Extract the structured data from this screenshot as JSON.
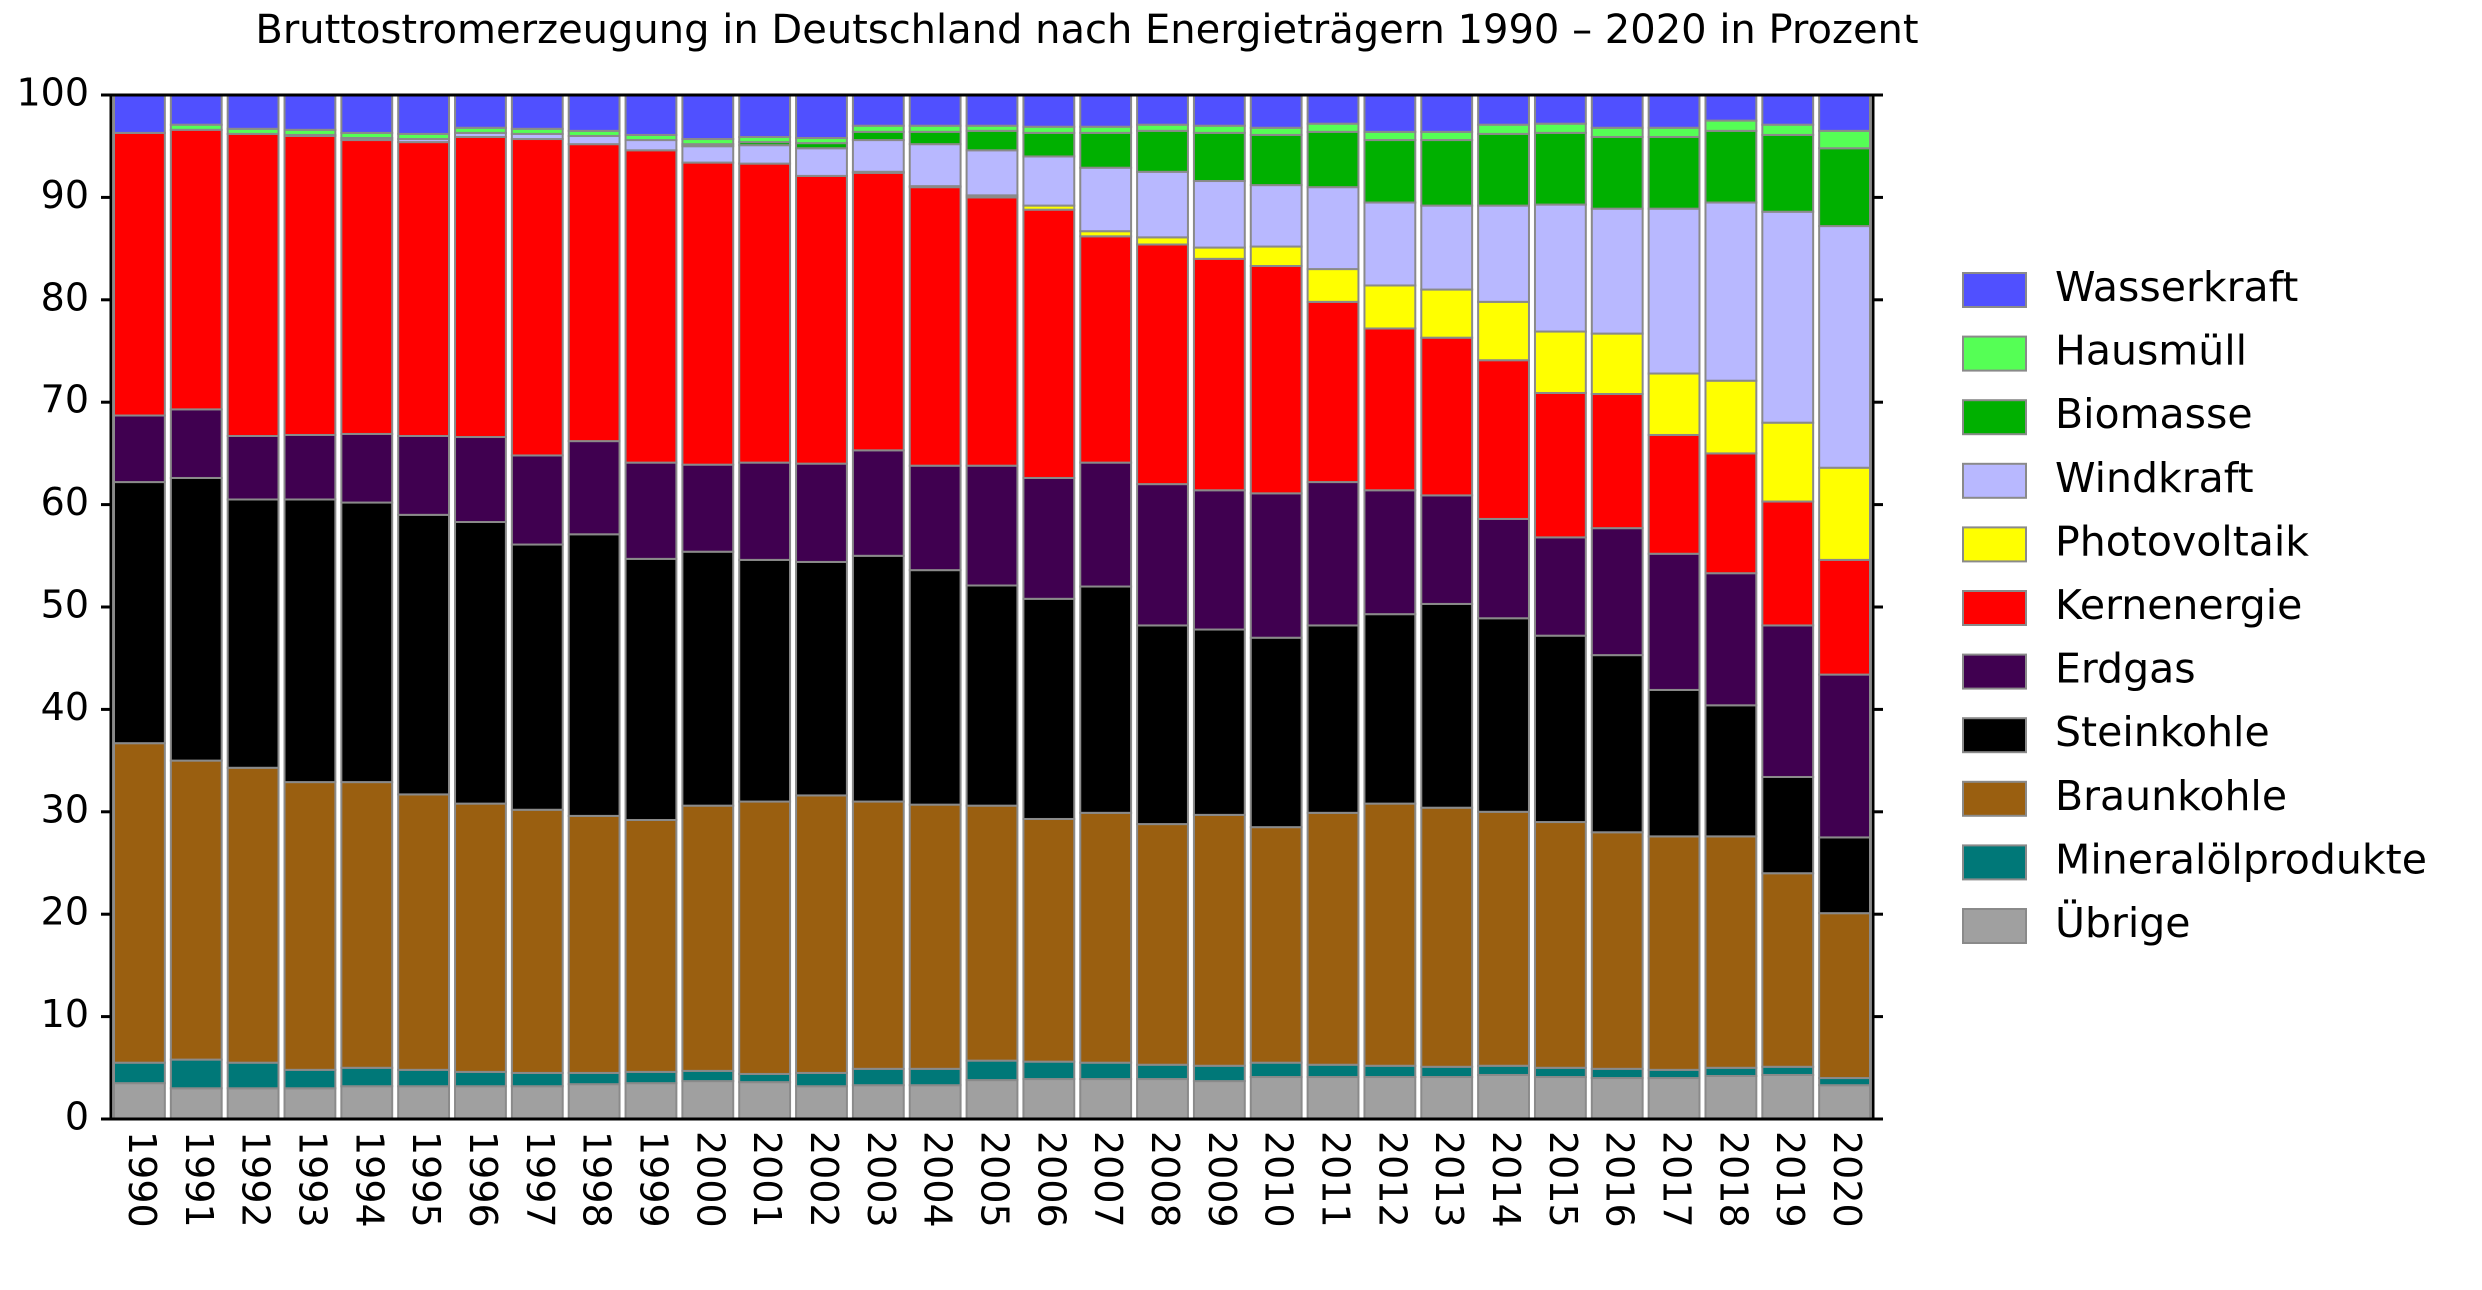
{
  "chart_data": {
    "type": "stacked_bar",
    "title": "Bruttostromerzeugung in Deutschland nach Energieträgern 1990 – 2020 in Prozent",
    "categories": [
      "1990",
      "1991",
      "1992",
      "1993",
      "1994",
      "1995",
      "1996",
      "1997",
      "1998",
      "1999",
      "2000",
      "2001",
      "2002",
      "2003",
      "2004",
      "2005",
      "2006",
      "2007",
      "2008",
      "2009",
      "2010",
      "2011",
      "2012",
      "2013",
      "2014",
      "2015",
      "2016",
      "2017",
      "2018",
      "2019",
      "2020"
    ],
    "ylim": [
      0,
      100
    ],
    "yticks": [
      0,
      10,
      20,
      30,
      40,
      50,
      60,
      70,
      80,
      90,
      100
    ],
    "grid": false,
    "legend": "right",
    "series": [
      {
        "name": "Übrige",
        "color": "#a0a0a0",
        "values": [
          3.5,
          3.0,
          3.0,
          3.0,
          3.2,
          3.2,
          3.2,
          3.2,
          3.4,
          3.5,
          3.7,
          3.6,
          3.2,
          3.3,
          3.3,
          3.8,
          3.9,
          3.9,
          3.9,
          3.7,
          4.1,
          4.1,
          4.1,
          4.1,
          4.3,
          4.1,
          4.0,
          4.0,
          4.2,
          4.3,
          3.3
        ]
      },
      {
        "name": "Mineralölprodukte",
        "color": "#007878",
        "values": [
          2.0,
          2.8,
          2.5,
          1.8,
          1.8,
          1.6,
          1.4,
          1.3,
          1.1,
          1.1,
          1.0,
          0.8,
          1.3,
          1.6,
          1.6,
          1.9,
          1.7,
          1.6,
          1.4,
          1.5,
          1.4,
          1.2,
          1.1,
          1.0,
          0.9,
          0.9,
          0.9,
          0.8,
          0.8,
          0.8,
          0.7
        ]
      },
      {
        "name": "Braunkohle",
        "color": "#9a5f10",
        "values": [
          31.2,
          29.2,
          28.8,
          28.1,
          27.9,
          26.9,
          26.2,
          25.7,
          25.1,
          24.6,
          25.9,
          26.6,
          27.1,
          26.1,
          25.8,
          24.9,
          23.7,
          24.4,
          23.5,
          24.5,
          23.0,
          24.6,
          25.6,
          25.3,
          24.8,
          24.0,
          23.1,
          22.8,
          22.6,
          18.9,
          16.1
        ]
      },
      {
        "name": "Steinkohle",
        "color": "#000000",
        "values": [
          25.5,
          27.6,
          26.2,
          27.6,
          27.3,
          27.3,
          27.5,
          25.9,
          27.5,
          25.5,
          24.8,
          23.6,
          22.8,
          24.0,
          22.9,
          21.5,
          21.5,
          22.1,
          19.4,
          18.1,
          18.5,
          18.3,
          18.5,
          19.9,
          18.9,
          18.2,
          17.3,
          14.3,
          12.8,
          9.4,
          7.4
        ]
      },
      {
        "name": "Erdgas",
        "color": "#400050",
        "values": [
          6.5,
          6.7,
          6.2,
          6.3,
          6.7,
          7.7,
          8.3,
          8.7,
          9.1,
          9.4,
          8.5,
          9.5,
          9.6,
          10.3,
          10.2,
          11.7,
          11.8,
          12.1,
          13.8,
          13.6,
          14.1,
          14.0,
          12.1,
          10.6,
          9.7,
          9.6,
          12.4,
          13.3,
          12.9,
          14.8,
          15.9
        ]
      },
      {
        "name": "Kernenergie",
        "color": "#ff0000",
        "values": [
          27.6,
          27.3,
          29.5,
          29.2,
          28.7,
          28.7,
          29.3,
          30.9,
          29.0,
          30.5,
          29.5,
          29.2,
          28.1,
          27.1,
          27.2,
          26.2,
          26.2,
          22.1,
          23.4,
          22.6,
          22.2,
          17.6,
          15.8,
          15.4,
          15.5,
          14.1,
          13.1,
          11.6,
          11.7,
          12.1,
          11.2
        ]
      },
      {
        "name": "Photovoltaik",
        "color": "#ffff00",
        "values": [
          0,
          0,
          0,
          0,
          0,
          0,
          0,
          0,
          0,
          0,
          0,
          0,
          0,
          0.1,
          0.1,
          0.2,
          0.4,
          0.5,
          0.7,
          1.1,
          1.9,
          3.2,
          4.2,
          4.7,
          5.7,
          6.0,
          5.9,
          6.0,
          7.1,
          7.7,
          9.0
        ]
      },
      {
        "name": "Windkraft",
        "color": "#b8b8ff",
        "values": [
          0,
          0,
          0,
          0.1,
          0.2,
          0.3,
          0.4,
          0.5,
          0.8,
          1.0,
          1.6,
          1.8,
          2.7,
          3.1,
          4.1,
          4.4,
          4.8,
          6.2,
          6.4,
          6.5,
          6.0,
          8.0,
          8.1,
          8.2,
          9.4,
          12.4,
          12.2,
          16.1,
          17.4,
          20.6,
          23.6
        ]
      },
      {
        "name": "Biomasse",
        "color": "#00b000",
        "values": [
          0,
          0,
          0,
          0,
          0,
          0,
          0,
          0,
          0,
          0,
          0.2,
          0.3,
          0.5,
          0.8,
          1.2,
          1.9,
          2.3,
          3.4,
          4.0,
          4.7,
          4.9,
          5.4,
          6.1,
          6.4,
          7.0,
          7.0,
          7.0,
          7.0,
          7.0,
          7.5,
          7.6
        ]
      },
      {
        "name": "Hausmüll",
        "color": "#55ff55",
        "values": [
          0,
          0.5,
          0.5,
          0.5,
          0.5,
          0.5,
          0.5,
          0.5,
          0.5,
          0.5,
          0.5,
          0.5,
          0.5,
          0.6,
          0.6,
          0.5,
          0.6,
          0.6,
          0.6,
          0.7,
          0.7,
          0.8,
          0.8,
          0.8,
          0.9,
          0.9,
          0.9,
          0.9,
          1.0,
          1.0,
          1.7
        ]
      },
      {
        "name": "Wasserkraft",
        "color": "#5050ff",
        "values": [
          3.7,
          2.9,
          3.3,
          3.4,
          3.7,
          3.8,
          3.2,
          3.3,
          3.5,
          3.9,
          4.3,
          4.1,
          4.2,
          3.0,
          3.0,
          3.0,
          3.1,
          3.1,
          2.9,
          3.0,
          3.2,
          2.8,
          3.6,
          3.6,
          2.9,
          2.8,
          3.2,
          3.2,
          2.5,
          2.9,
          3.5
        ]
      }
    ]
  }
}
